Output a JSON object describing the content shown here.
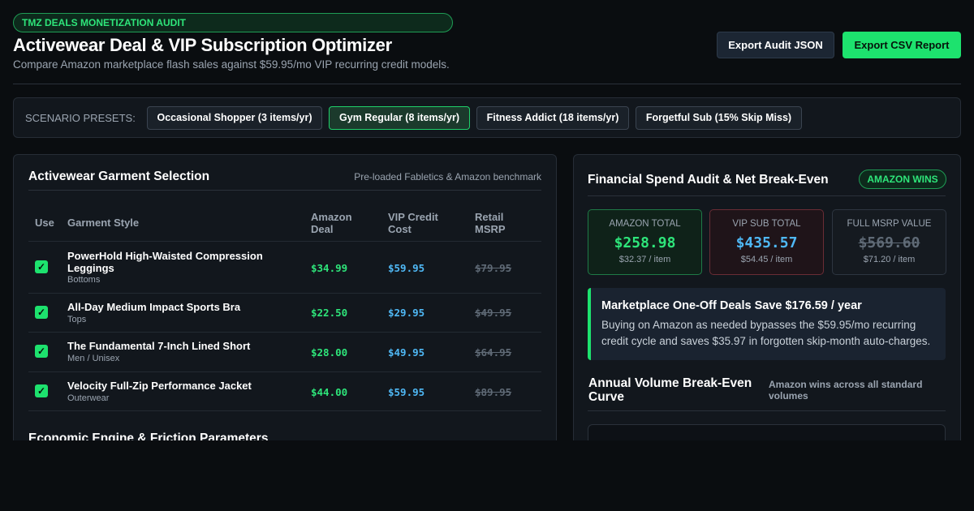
{
  "header": {
    "badge": "TMZ DEALS MONETIZATION AUDIT",
    "title": "Activewear Deal & VIP Subscription Optimizer",
    "subtitle": "Compare Amazon marketplace flash sales against $59.95/mo VIP recurring credit models.",
    "export_json": "Export Audit JSON",
    "export_csv": "Export CSV Report"
  },
  "presets": {
    "label": "SCENARIO PRESETS:",
    "items": [
      {
        "label": "Occasional Shopper (3 items/yr)",
        "active": false
      },
      {
        "label": "Gym Regular (8 items/yr)",
        "active": true
      },
      {
        "label": "Fitness Addict (18 items/yr)",
        "active": false
      },
      {
        "label": "Forgetful Sub (15% Skip Miss)",
        "active": false
      }
    ]
  },
  "garments": {
    "title": "Activewear Garment Selection",
    "note": "Pre-loaded Fabletics & Amazon benchmark",
    "columns": [
      "Use",
      "Garment Style",
      "Amazon Deal",
      "VIP Credit Cost",
      "Retail MSRP"
    ],
    "rows": [
      {
        "name": "PowerHold High-Waisted Compression Leggings",
        "category": "Bottoms",
        "amazon": "$34.99",
        "vip": "$59.95",
        "msrp": "$79.95",
        "checked": true
      },
      {
        "name": "All-Day Medium Impact Sports Bra",
        "category": "Tops",
        "amazon": "$22.50",
        "vip": "$29.95",
        "msrp": "$49.95",
        "checked": true
      },
      {
        "name": "The Fundamental 7-Inch Lined Short",
        "category": "Men / Unisex",
        "amazon": "$28.00",
        "vip": "$49.95",
        "msrp": "$64.95",
        "checked": true
      },
      {
        "name": "Velocity Full-Zip Performance Jacket",
        "category": "Outerwear",
        "amazon": "$44.00",
        "vip": "$59.95",
        "msrp": "$89.95",
        "checked": true
      }
    ],
    "check_glyph": "✓",
    "next_section": "Economic Engine & Friction Parameters"
  },
  "audit": {
    "title": "Financial Spend Audit & Net Break-Even",
    "winner": "AMAZON WINS",
    "stats": [
      {
        "label": "AMAZON TOTAL",
        "value": "$258.98",
        "per_item": "$32.37 / item",
        "color": "#2ee57a"
      },
      {
        "label": "VIP SUB TOTAL",
        "value": "$435.57",
        "per_item": "$54.45 / item",
        "color": "#4fb8f5"
      },
      {
        "label": "FULL MSRP VALUE",
        "value": "$569.60",
        "per_item": "$71.20 / item",
        "color": "#5f6a76"
      }
    ],
    "callout_title": "Marketplace One-Off Deals Save $176.59 / year",
    "callout_body": "Buying on Amazon as needed bypasses the $59.95/mo recurring credit cycle and saves $35.97 in forgotten skip-month auto-charges.",
    "curve_title": "Annual Volume Break-Even Curve",
    "curve_note": "Amazon wins across all standard volumes"
  }
}
